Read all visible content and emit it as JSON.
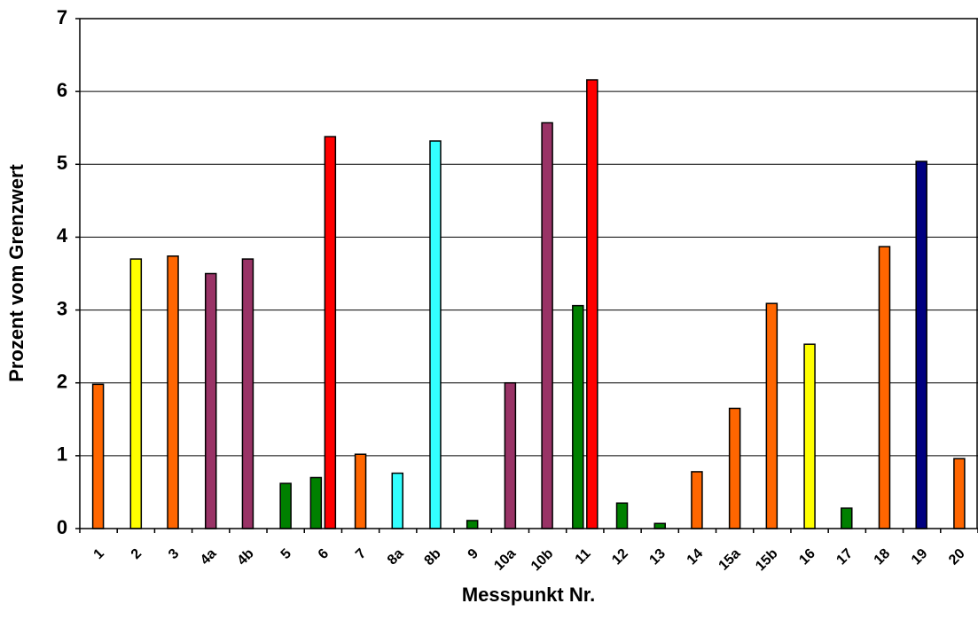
{
  "chart_data": {
    "type": "bar",
    "title": "",
    "xlabel": "Messpunkt Nr.",
    "ylabel": "Prozent vom Grenzwert",
    "ylim": [
      0,
      7
    ],
    "yticks": [
      0,
      1,
      2,
      3,
      4,
      5,
      6,
      7
    ],
    "grid": "horizontal",
    "legend": "none",
    "categories": [
      "1",
      "2",
      "3",
      "4a",
      "4b",
      "5",
      "6",
      "7",
      "8a",
      "8b",
      "9",
      "10a",
      "10b",
      "11",
      "12",
      "13",
      "14",
      "15a",
      "15b",
      "16",
      "17",
      "18",
      "19",
      "20"
    ],
    "bars": [
      {
        "category": "1",
        "value": 1.98,
        "color": "#ff6600"
      },
      {
        "category": "2",
        "value": 3.7,
        "color": "#ffff00"
      },
      {
        "category": "3",
        "value": 3.74,
        "color": "#ff6600"
      },
      {
        "category": "4a",
        "value": 3.5,
        "color": "#993366"
      },
      {
        "category": "4b",
        "value": 3.7,
        "color": "#993366"
      },
      {
        "category": "5",
        "value": 0.62,
        "color": "#008000"
      },
      {
        "category": "6",
        "value": 0.7,
        "color": "#008000"
      },
      {
        "category": "6",
        "value": 5.38,
        "color": "#ff0000"
      },
      {
        "category": "7",
        "value": 1.02,
        "color": "#ff6600"
      },
      {
        "category": "8a",
        "value": 0.76,
        "color": "#33ffff"
      },
      {
        "category": "8b",
        "value": 5.32,
        "color": "#33ffff"
      },
      {
        "category": "9",
        "value": 0.11,
        "color": "#008000"
      },
      {
        "category": "10a",
        "value": 2.0,
        "color": "#993366"
      },
      {
        "category": "10b",
        "value": 5.57,
        "color": "#993366"
      },
      {
        "category": "11",
        "value": 3.06,
        "color": "#008000"
      },
      {
        "category": "11",
        "value": 6.16,
        "color": "#ff0000"
      },
      {
        "category": "12",
        "value": 0.35,
        "color": "#008000"
      },
      {
        "category": "13",
        "value": 0.07,
        "color": "#008000"
      },
      {
        "category": "14",
        "value": 0.78,
        "color": "#ff6600"
      },
      {
        "category": "15a",
        "value": 1.65,
        "color": "#ff6600"
      },
      {
        "category": "15b",
        "value": 3.09,
        "color": "#ff6600"
      },
      {
        "category": "16",
        "value": 2.53,
        "color": "#ffff00"
      },
      {
        "category": "17",
        "value": 0.28,
        "color": "#008000"
      },
      {
        "category": "18",
        "value": 3.87,
        "color": "#ff6600"
      },
      {
        "category": "19",
        "value": 5.04,
        "color": "#000080"
      },
      {
        "category": "20",
        "value": 0.96,
        "color": "#ff6600"
      }
    ]
  }
}
